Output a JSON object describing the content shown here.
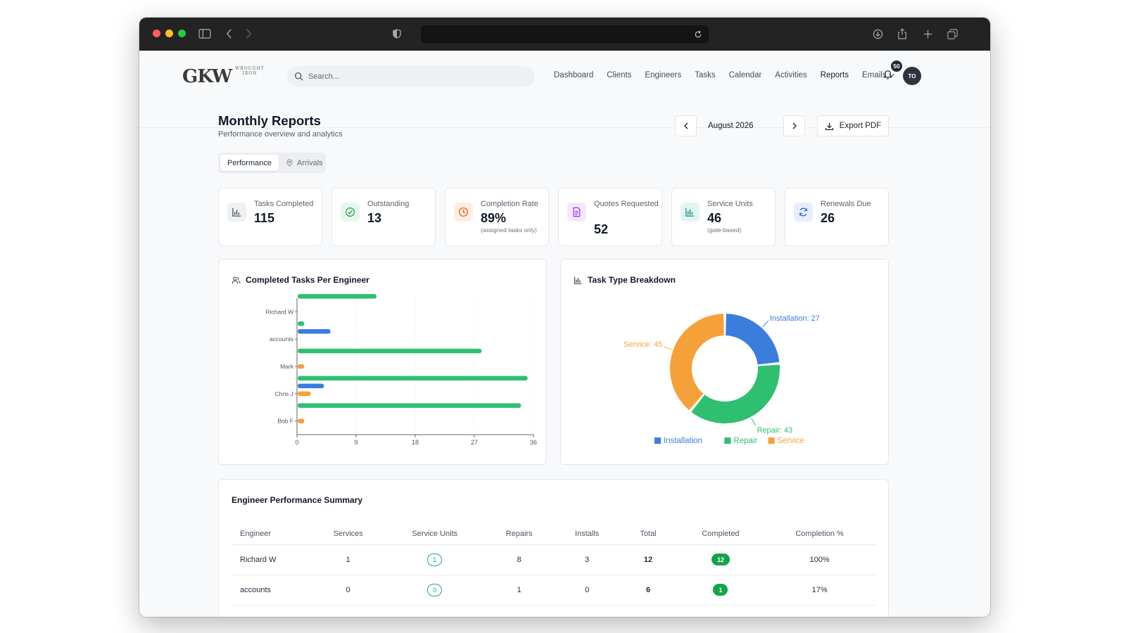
{
  "app": {
    "logo_main": "GKW",
    "logo_sub_line1": "WROUGHT",
    "logo_sub_line2": "IRON"
  },
  "search": {
    "placeholder": "Search..."
  },
  "nav": {
    "items": [
      "Dashboard",
      "Clients",
      "Engineers",
      "Tasks",
      "Calendar",
      "Activities",
      "Reports"
    ],
    "active": "Reports",
    "emails_label": "Emails",
    "notification_count": "50",
    "avatar_initials": "TO"
  },
  "page": {
    "title": "Monthly Reports",
    "subtitle": "Performance overview and analytics",
    "month": "August 2026",
    "export_label": "Export PDF"
  },
  "tabs": [
    {
      "label": "Performance",
      "active": true
    },
    {
      "label": "Arrivals",
      "active": false
    }
  ],
  "stats": [
    {
      "label": "Tasks Completed",
      "value": "115",
      "note": "",
      "icon": "bar-chart-icon",
      "color": "#4b5563",
      "bg": "#eef0f3"
    },
    {
      "label": "Outstanding",
      "value": "13",
      "note": "",
      "icon": "check-circle-icon",
      "color": "#16a34a",
      "bg": "#e7f7ec"
    },
    {
      "label": "Completion Rate",
      "value": "89%",
      "note": "(assigned tasks only)",
      "icon": "clock-icon",
      "color": "#ea580c",
      "bg": "#fdeee3"
    },
    {
      "label": "Quotes Requested",
      "value": "52",
      "note": "",
      "icon": "document-icon",
      "color": "#9333ea",
      "bg": "#f3e8fd"
    },
    {
      "label": "Service Units",
      "value": "46",
      "note": "(gate-based)",
      "icon": "chart-icon",
      "color": "#0d9488",
      "bg": "#e2f5f3"
    },
    {
      "label": "Renewals Due",
      "value": "26",
      "note": "",
      "icon": "refresh-icon",
      "color": "#2563eb",
      "bg": "#e6eefc"
    }
  ],
  "panels": {
    "engineer_chart_title": "Completed Tasks Per Engineer",
    "breakdown_title": "Task Type Breakdown",
    "table_title": "Engineer Performance Summary"
  },
  "chart_data": [
    {
      "type": "bar",
      "orientation": "horizontal",
      "title": "Completed Tasks Per Engineer",
      "categories": [
        "Richard W",
        "accounts",
        "Mark",
        "Chris J",
        "Bob F"
      ],
      "series": [
        {
          "color": "#2fbf71",
          "values": [
            12,
            1,
            28,
            35,
            34
          ]
        },
        {
          "color": "#3b7ddd",
          "values": [
            0,
            5,
            0,
            4,
            0
          ]
        },
        {
          "color": "#f5a13a",
          "values": [
            0,
            0,
            1,
            2,
            1
          ]
        }
      ],
      "xticks": [
        0,
        9,
        18,
        27,
        36
      ],
      "xlim": [
        0,
        36
      ],
      "grid": true
    },
    {
      "type": "pie",
      "donut": true,
      "title": "Task Type Breakdown",
      "categories": [
        "Installation",
        "Repair",
        "Service"
      ],
      "values": [
        27,
        43,
        45
      ],
      "colors": [
        "#3b7ddd",
        "#2fbf71",
        "#f5a13a"
      ],
      "data_labels": [
        "Installation: 27",
        "Repair: 43",
        "Service: 45"
      ],
      "legend": "bottom"
    }
  ],
  "table": {
    "columns": [
      "Engineer",
      "Services",
      "Service Units",
      "Repairs",
      "Installs",
      "Total",
      "Completed",
      "Completion %"
    ],
    "rows": [
      {
        "engineer": "Richard W",
        "services": "1",
        "service_units": "1",
        "repairs": "8",
        "installs": "3",
        "total": "12",
        "completed": "12",
        "completion": "100%"
      },
      {
        "engineer": "accounts",
        "services": "0",
        "service_units": "0",
        "repairs": "1",
        "installs": "0",
        "total": "6",
        "completed": "1",
        "completion": "17%"
      }
    ]
  }
}
